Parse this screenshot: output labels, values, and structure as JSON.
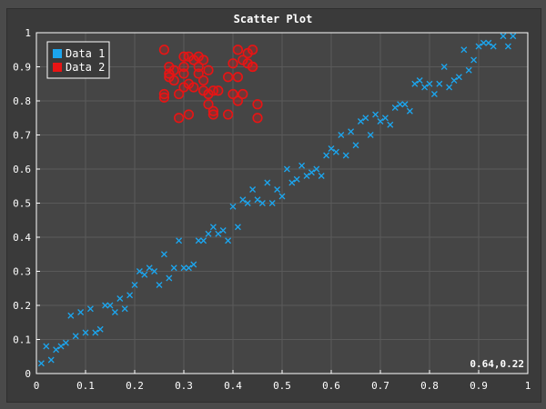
{
  "chart_data": {
    "type": "scatter",
    "title": "Scatter Plot",
    "xlabel": "",
    "ylabel": "",
    "xlim": [
      0,
      1
    ],
    "ylim": [
      0,
      1
    ],
    "xticks": [
      "0",
      "0.1",
      "0.2",
      "0.3",
      "0.4",
      "0.5",
      "0.6",
      "0.7",
      "0.8",
      "0.9",
      "1"
    ],
    "yticks": [
      "0",
      "0.1",
      "0.2",
      "0.3",
      "0.4",
      "0.5",
      "0.6",
      "0.7",
      "0.8",
      "0.9",
      "1"
    ],
    "grid": true,
    "legend_position": "top-left",
    "coordinate_readout": "0.64,0.22",
    "colors": {
      "background": "#3a3a3a",
      "plot_background": "#454545",
      "grid": "#5a5a5a",
      "axis": "#ffffff",
      "series1": "#1ca6ef",
      "series2": "#e81414"
    },
    "series": [
      {
        "name": "Data 1",
        "marker": "x",
        "points": [
          [
            0.01,
            0.03
          ],
          [
            0.02,
            0.08
          ],
          [
            0.03,
            0.04
          ],
          [
            0.04,
            0.07
          ],
          [
            0.05,
            0.08
          ],
          [
            0.06,
            0.09
          ],
          [
            0.07,
            0.17
          ],
          [
            0.08,
            0.11
          ],
          [
            0.09,
            0.18
          ],
          [
            0.1,
            0.12
          ],
          [
            0.11,
            0.19
          ],
          [
            0.12,
            0.12
          ],
          [
            0.13,
            0.13
          ],
          [
            0.14,
            0.2
          ],
          [
            0.15,
            0.2
          ],
          [
            0.16,
            0.18
          ],
          [
            0.17,
            0.22
          ],
          [
            0.18,
            0.19
          ],
          [
            0.19,
            0.23
          ],
          [
            0.2,
            0.26
          ],
          [
            0.21,
            0.3
          ],
          [
            0.22,
            0.29
          ],
          [
            0.23,
            0.31
          ],
          [
            0.24,
            0.3
          ],
          [
            0.25,
            0.26
          ],
          [
            0.26,
            0.35
          ],
          [
            0.27,
            0.28
          ],
          [
            0.28,
            0.31
          ],
          [
            0.29,
            0.39
          ],
          [
            0.3,
            0.31
          ],
          [
            0.31,
            0.31
          ],
          [
            0.32,
            0.32
          ],
          [
            0.33,
            0.39
          ],
          [
            0.34,
            0.39
          ],
          [
            0.35,
            0.41
          ],
          [
            0.36,
            0.43
          ],
          [
            0.37,
            0.41
          ],
          [
            0.38,
            0.42
          ],
          [
            0.39,
            0.39
          ],
          [
            0.4,
            0.49
          ],
          [
            0.41,
            0.43
          ],
          [
            0.42,
            0.51
          ],
          [
            0.43,
            0.5
          ],
          [
            0.44,
            0.54
          ],
          [
            0.45,
            0.51
          ],
          [
            0.46,
            0.5
          ],
          [
            0.47,
            0.56
          ],
          [
            0.48,
            0.5
          ],
          [
            0.49,
            0.54
          ],
          [
            0.5,
            0.52
          ],
          [
            0.51,
            0.6
          ],
          [
            0.52,
            0.56
          ],
          [
            0.53,
            0.57
          ],
          [
            0.54,
            0.61
          ],
          [
            0.55,
            0.58
          ],
          [
            0.56,
            0.59
          ],
          [
            0.57,
            0.6
          ],
          [
            0.58,
            0.58
          ],
          [
            0.59,
            0.64
          ],
          [
            0.6,
            0.66
          ],
          [
            0.61,
            0.65
          ],
          [
            0.62,
            0.7
          ],
          [
            0.63,
            0.64
          ],
          [
            0.64,
            0.71
          ],
          [
            0.65,
            0.67
          ],
          [
            0.66,
            0.74
          ],
          [
            0.67,
            0.75
          ],
          [
            0.68,
            0.7
          ],
          [
            0.69,
            0.76
          ],
          [
            0.7,
            0.74
          ],
          [
            0.71,
            0.75
          ],
          [
            0.72,
            0.73
          ],
          [
            0.73,
            0.78
          ],
          [
            0.74,
            0.79
          ],
          [
            0.75,
            0.79
          ],
          [
            0.76,
            0.77
          ],
          [
            0.77,
            0.85
          ],
          [
            0.78,
            0.86
          ],
          [
            0.79,
            0.84
          ],
          [
            0.8,
            0.85
          ],
          [
            0.81,
            0.82
          ],
          [
            0.82,
            0.85
          ],
          [
            0.83,
            0.9
          ],
          [
            0.84,
            0.84
          ],
          [
            0.85,
            0.86
          ],
          [
            0.86,
            0.87
          ],
          [
            0.87,
            0.95
          ],
          [
            0.88,
            0.89
          ],
          [
            0.89,
            0.92
          ],
          [
            0.9,
            0.96
          ],
          [
            0.91,
            0.97
          ],
          [
            0.92,
            0.97
          ],
          [
            0.93,
            0.96
          ],
          [
            0.95,
            0.99
          ],
          [
            0.96,
            0.96
          ],
          [
            0.97,
            0.99
          ]
        ]
      },
      {
        "name": "Data 2",
        "marker": "circle",
        "points": [
          [
            0.26,
            0.95
          ],
          [
            0.27,
            0.9
          ],
          [
            0.28,
            0.89
          ],
          [
            0.27,
            0.87
          ],
          [
            0.26,
            0.81
          ],
          [
            0.26,
            0.82
          ],
          [
            0.28,
            0.86
          ],
          [
            0.29,
            0.75
          ],
          [
            0.29,
            0.82
          ],
          [
            0.3,
            0.93
          ],
          [
            0.3,
            0.9
          ],
          [
            0.3,
            0.88
          ],
          [
            0.31,
            0.85
          ],
          [
            0.31,
            0.93
          ],
          [
            0.31,
            0.76
          ],
          [
            0.32,
            0.84
          ],
          [
            0.32,
            0.92
          ],
          [
            0.33,
            0.9
          ],
          [
            0.33,
            0.93
          ],
          [
            0.34,
            0.92
          ],
          [
            0.34,
            0.86
          ],
          [
            0.34,
            0.83
          ],
          [
            0.35,
            0.89
          ],
          [
            0.35,
            0.82
          ],
          [
            0.35,
            0.79
          ],
          [
            0.36,
            0.83
          ],
          [
            0.36,
            0.77
          ],
          [
            0.36,
            0.76
          ],
          [
            0.37,
            0.83
          ],
          [
            0.39,
            0.76
          ],
          [
            0.4,
            0.82
          ],
          [
            0.4,
            0.91
          ],
          [
            0.41,
            0.87
          ],
          [
            0.41,
            0.95
          ],
          [
            0.41,
            0.8
          ],
          [
            0.42,
            0.92
          ],
          [
            0.42,
            0.82
          ],
          [
            0.43,
            0.94
          ],
          [
            0.43,
            0.91
          ],
          [
            0.44,
            0.9
          ],
          [
            0.44,
            0.95
          ],
          [
            0.44,
            0.9
          ],
          [
            0.45,
            0.79
          ],
          [
            0.45,
            0.75
          ],
          [
            0.27,
            0.88
          ],
          [
            0.3,
            0.84
          ],
          [
            0.33,
            0.88
          ],
          [
            0.39,
            0.87
          ]
        ]
      }
    ]
  }
}
